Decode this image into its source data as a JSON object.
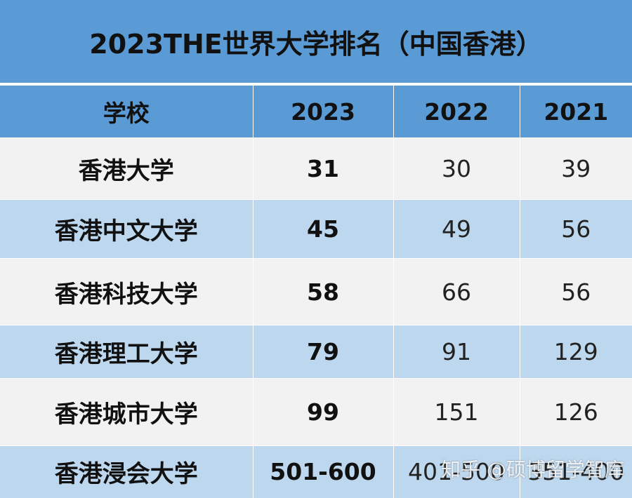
{
  "title": "2023THE世界大学排名（中国香港）",
  "headers": [
    "学校",
    "2023",
    "2022",
    "2021"
  ],
  "rows": [
    {
      "school": "香港大学",
      "r2023": "31",
      "r2022": "30",
      "r2021": "39"
    },
    {
      "school": "香港中文大学",
      "r2023": "45",
      "r2022": "49",
      "r2021": "56"
    },
    {
      "school": "香港科技大学",
      "r2023": "58",
      "r2022": "66",
      "r2021": "56"
    },
    {
      "school": "香港理工大学",
      "r2023": "79",
      "r2022": "91",
      "r2021": "129"
    },
    {
      "school": "香港城市大学",
      "r2023": "99",
      "r2022": "151",
      "r2021": "126"
    },
    {
      "school": "香港浸会大学",
      "r2023": "501-600",
      "r2022": "401-500",
      "r2021": "351-400"
    }
  ],
  "watermark": "知乎 @硕博留学智库",
  "colors": {
    "header_bg": "#5b9bd5",
    "row_light": "#f2f2f2",
    "row_blue": "#bdd7ee"
  }
}
